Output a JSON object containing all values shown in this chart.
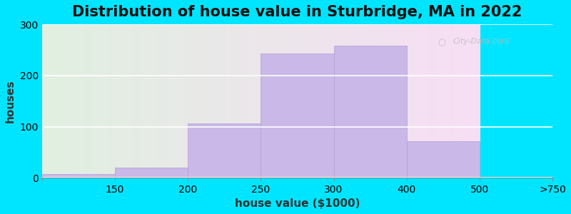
{
  "title": "Distribution of house value in Sturbridge, MA in 2022",
  "xlabel": "house value ($1000)",
  "ylabel": "houses",
  "x_ticks_labels": [
    "150",
    "200",
    "250",
    "300",
    "400",
    "500",
    ">750"
  ],
  "bar_lefts": [
    0,
    1,
    2,
    3,
    4,
    5
  ],
  "bar_widths": [
    1,
    1,
    1,
    1,
    1,
    1
  ],
  "values": [
    8,
    20,
    107,
    243,
    258,
    72
  ],
  "bar_color": "#c9b8e8",
  "bar_edgecolor": "#b0a0d0",
  "ylim": [
    0,
    300
  ],
  "xlim": [
    0,
    6
  ],
  "yticks": [
    0,
    100,
    200,
    300
  ],
  "background_outer": "#00e5ff",
  "grid_color": "#ffffff",
  "title_fontsize": 15,
  "axis_fontsize": 11,
  "tick_fontsize": 10,
  "watermark": "City-Data.com"
}
